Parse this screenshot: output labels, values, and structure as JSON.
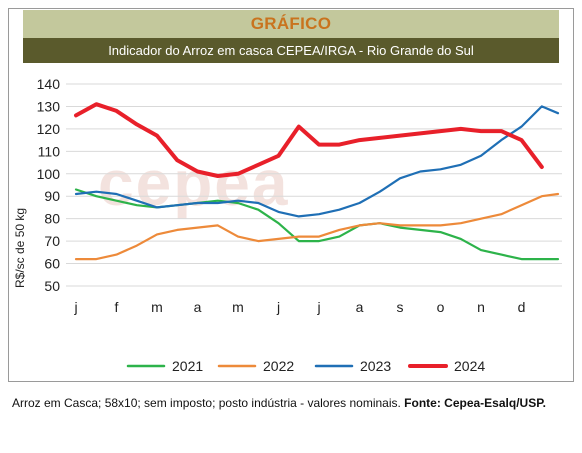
{
  "header": {
    "title": "GRÁFICO",
    "subtitle": "Indicador do Arroz em casca CEPEA/IRGA - Rio Grande do Sul"
  },
  "watermark": "cepea",
  "footnote": {
    "text": "Arroz em Casca; 58x10; sem imposto; posto indústria - valores nominais. ",
    "source": "Fonte: Cepea-Esalq/USP."
  },
  "colors": {
    "2021": "#2db34a",
    "2022": "#ed8a3a",
    "2023": "#1f6fb5",
    "2024": "#e8202a",
    "title_band": "#c3c89c",
    "subtitle_band": "#5a5a2c",
    "title_text": "#c9731e"
  },
  "chart_data": {
    "type": "line",
    "title": "Indicador do Arroz em casca CEPEA/IRGA - Rio Grande do Sul",
    "xlabel": "",
    "ylabel": "R$/sc de 50 kg",
    "ylim": [
      50,
      140
    ],
    "yticks": [
      50,
      60,
      70,
      80,
      90,
      100,
      110,
      120,
      130,
      140
    ],
    "categories": [
      "j",
      "f",
      "m",
      "a",
      "m",
      "j",
      "j",
      "a",
      "s",
      "o",
      "n",
      "d"
    ],
    "grid": true,
    "legend": "bottom",
    "x": [
      0.0,
      0.5,
      1.0,
      1.5,
      2.0,
      2.5,
      3.0,
      3.5,
      4.0,
      4.5,
      5.0,
      5.5,
      6.0,
      6.5,
      7.0,
      7.5,
      8.0,
      8.5,
      9.0,
      9.5,
      10.0,
      10.5,
      11.0,
      11.5,
      11.9
    ],
    "series": [
      {
        "name": "2021",
        "color": "#2db34a",
        "values": [
          93,
          90,
          88,
          86,
          85,
          86,
          87,
          88,
          87,
          84,
          78,
          70,
          70,
          72,
          77,
          78,
          76,
          75,
          74,
          71,
          66,
          64,
          62,
          62,
          62
        ]
      },
      {
        "name": "2022",
        "color": "#ed8a3a",
        "values": [
          62,
          62,
          64,
          68,
          73,
          75,
          76,
          77,
          72,
          70,
          71,
          72,
          72,
          75,
          77,
          78,
          77,
          77,
          77,
          78,
          80,
          82,
          86,
          90,
          91
        ]
      },
      {
        "name": "2023",
        "color": "#1f6fb5",
        "values": [
          91,
          92,
          91,
          88,
          85,
          86,
          87,
          87,
          88,
          87,
          83,
          81,
          82,
          84,
          87,
          92,
          98,
          101,
          102,
          104,
          108,
          115,
          121,
          130,
          127
        ]
      },
      {
        "name": "2024",
        "color": "#e8202a",
        "values": [
          126,
          131,
          128,
          122,
          117,
          106,
          101,
          99,
          100,
          104,
          108,
          121,
          113,
          113,
          115,
          116,
          117,
          118,
          119,
          120,
          119,
          119,
          115,
          103,
          null
        ]
      }
    ]
  }
}
